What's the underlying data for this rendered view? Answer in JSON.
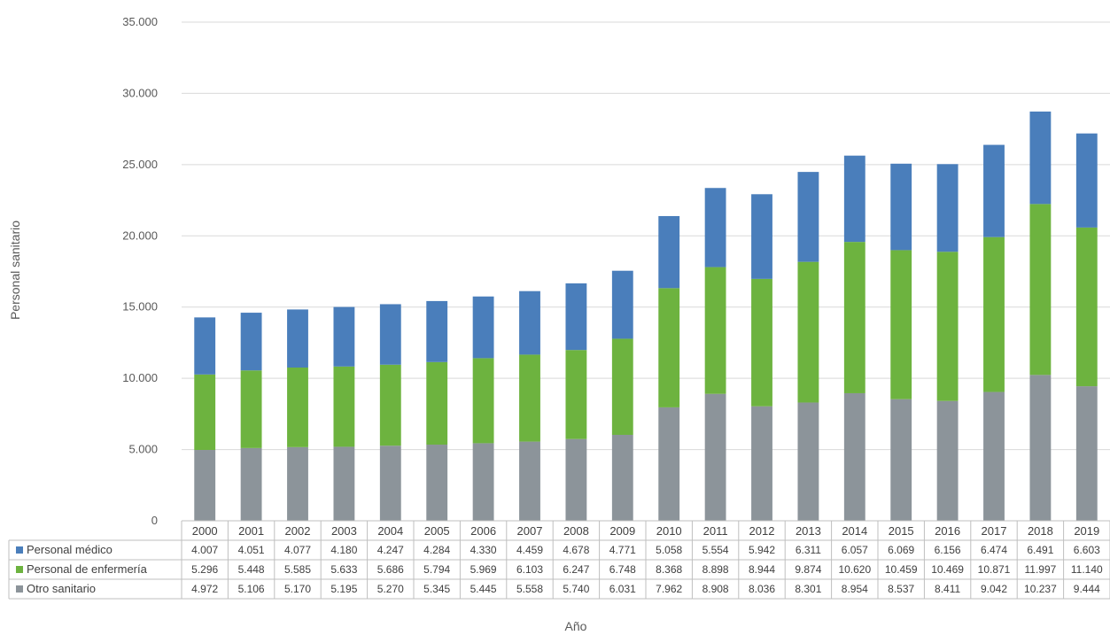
{
  "chart_data": {
    "type": "bar",
    "stacked": true,
    "title": "",
    "xlabel": "Año",
    "ylabel": "Personal sanitario",
    "ylim": [
      0,
      35000
    ],
    "yticks": [
      "0",
      "5.000",
      "10.000",
      "15.000",
      "20.000",
      "25.000",
      "30.000",
      "35.000"
    ],
    "grid": true,
    "legend": "data-table",
    "categories": [
      "2000",
      "2001",
      "2002",
      "2003",
      "2004",
      "2005",
      "2006",
      "2007",
      "2008",
      "2009",
      "2010",
      "2011",
      "2012",
      "2013",
      "2014",
      "2015",
      "2016",
      "2017",
      "2018",
      "2019"
    ],
    "series": [
      {
        "name": "Personal médico",
        "color": "#4a7ebb",
        "values": [
          4007,
          4051,
          4077,
          4180,
          4247,
          4284,
          4330,
          4459,
          4678,
          4771,
          5058,
          5554,
          5942,
          6311,
          6057,
          6069,
          6156,
          6474,
          6491,
          6603
        ],
        "labels": [
          "4.007",
          "4.051",
          "4.077",
          "4.180",
          "4.247",
          "4.284",
          "4.330",
          "4.459",
          "4.678",
          "4.771",
          "5.058",
          "5.554",
          "5.942",
          "6.311",
          "6.057",
          "6.069",
          "6.156",
          "6.474",
          "6.491",
          "6.603"
        ]
      },
      {
        "name": "Personal de enfermería",
        "color": "#6db33f",
        "values": [
          5296,
          5448,
          5585,
          5633,
          5686,
          5794,
          5969,
          6103,
          6247,
          6748,
          8368,
          8898,
          8944,
          9874,
          10620,
          10459,
          10469,
          10871,
          11997,
          11140
        ],
        "labels": [
          "5.296",
          "5.448",
          "5.585",
          "5.633",
          "5.686",
          "5.794",
          "5.969",
          "6.103",
          "6.247",
          "6.748",
          "8.368",
          "8.898",
          "8.944",
          "9.874",
          "10.620",
          "10.459",
          "10.469",
          "10.871",
          "11.997",
          "11.140"
        ]
      },
      {
        "name": "Otro sanitario",
        "color": "#8c949a",
        "values": [
          4972,
          5106,
          5170,
          5195,
          5270,
          5345,
          5445,
          5558,
          5740,
          6031,
          7962,
          8908,
          8036,
          8301,
          8954,
          8537,
          8411,
          9042,
          10237,
          9444
        ],
        "labels": [
          "4.972",
          "5.106",
          "5.170",
          "5.195",
          "5.270",
          "5.345",
          "5.445",
          "5.558",
          "5.740",
          "6.031",
          "7.962",
          "8.908",
          "8.036",
          "8.301",
          "8.954",
          "8.537",
          "8.411",
          "9.042",
          "10.237",
          "9.444"
        ]
      }
    ]
  }
}
